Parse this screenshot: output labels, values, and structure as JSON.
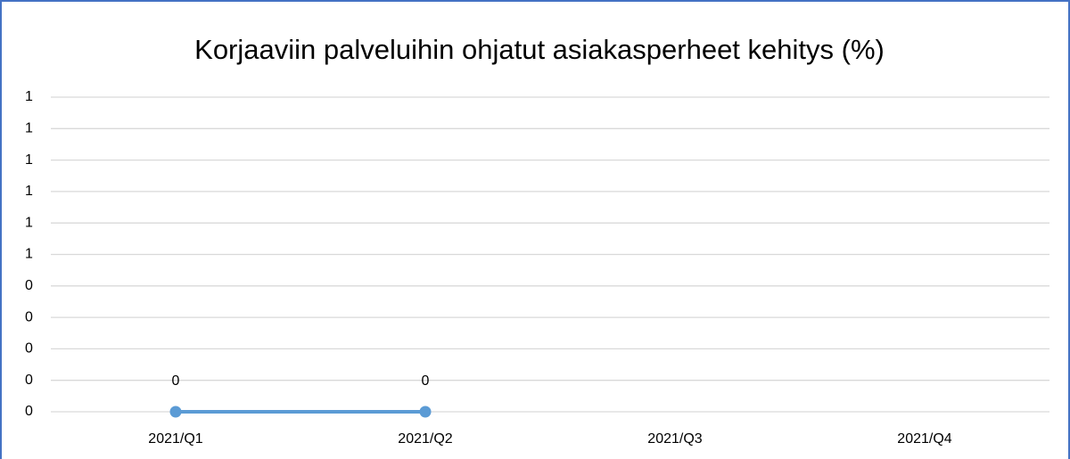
{
  "chart_data": {
    "type": "line",
    "title": "Korjaaviin palveluihin ohjatut asiakasperheet kehitys (%)",
    "categories": [
      "2021/Q1",
      "2021/Q2",
      "2021/Q3",
      "2021/Q4"
    ],
    "series": [
      {
        "name": "Korjaaviin palveluihin ohjatut asiakasperheet",
        "color": "#5b9bd5",
        "values": [
          0,
          0,
          null,
          null
        ]
      }
    ],
    "ylim": [
      0,
      1
    ],
    "yticks": [
      0,
      {
        "value": 0.1,
        "label": "0"
      },
      {
        "value": 0.2,
        "label": "0"
      },
      {
        "value": 0.3,
        "label": "0"
      },
      {
        "value": 0.4,
        "label": "0"
      },
      {
        "value": 0.5,
        "label": "1"
      },
      {
        "value": 0.6,
        "label": "1"
      },
      {
        "value": 0.7,
        "label": "1"
      },
      {
        "value": 0.8,
        "label": "1"
      },
      {
        "value": 0.9,
        "label": "1"
      },
      1
    ],
    "grid": true,
    "data_labels": true
  }
}
